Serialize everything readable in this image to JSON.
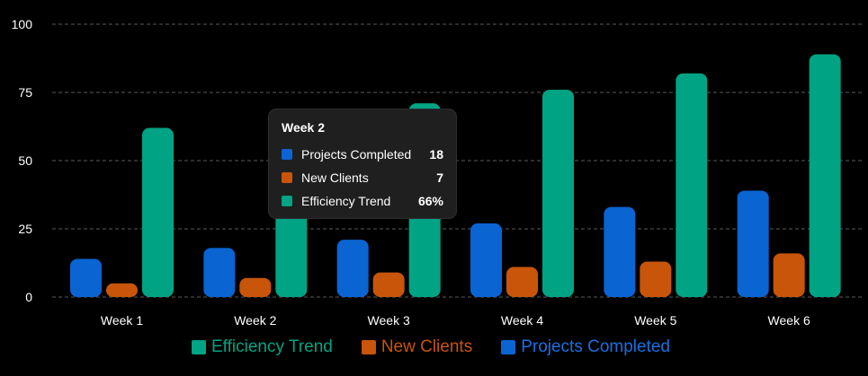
{
  "chart_data": {
    "type": "bar",
    "categories": [
      "Week 1",
      "Week 2",
      "Week 3",
      "Week 4",
      "Week 5",
      "Week 6"
    ],
    "series": [
      {
        "name": "Projects Completed",
        "color": "#0a64d2",
        "values": [
          14,
          18,
          21,
          27,
          33,
          39
        ]
      },
      {
        "name": "New Clients",
        "color": "#c8550a",
        "values": [
          5,
          7,
          9,
          11,
          13,
          16
        ]
      },
      {
        "name": "Efficiency Trend",
        "color": "#00a383",
        "values": [
          62,
          66,
          71,
          76,
          82,
          89
        ]
      }
    ],
    "ylim": [
      0,
      100
    ],
    "yticks": [
      "0",
      "25",
      "50",
      "75",
      "100"
    ],
    "grid": true,
    "legend_position": "bottom",
    "legend_order": [
      "Efficiency Trend",
      "New Clients",
      "Projects Completed"
    ]
  },
  "tooltip": {
    "title": "Week 2",
    "rows": [
      {
        "label": "Projects Completed",
        "value": "18",
        "color": "#0a64d2"
      },
      {
        "label": "New Clients",
        "value": "7",
        "color": "#c8550a"
      },
      {
        "label": "Efficiency Trend",
        "value": "66%",
        "color": "#00a383"
      }
    ]
  }
}
